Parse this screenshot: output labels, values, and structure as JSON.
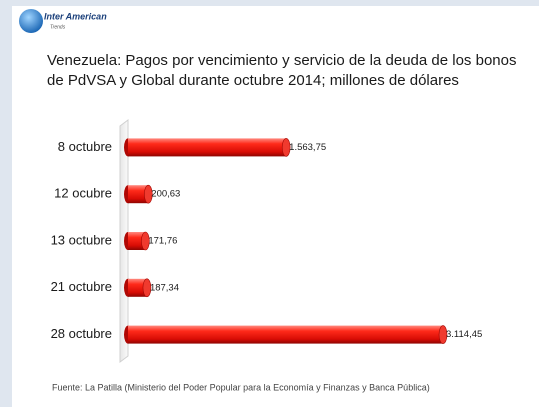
{
  "logo": {
    "name": "Inter American",
    "subtitle": "Trends"
  },
  "chart_data": {
    "type": "bar",
    "orientation": "horizontal",
    "title": "Venezuela: Pagos por vencimiento y servicio de la deuda de los bonos de PdVSA y Global durante octubre 2014; millones de dólares",
    "categories": [
      "8 octubre",
      "12 ocubre",
      "13 octubre",
      "21 octubre",
      "28 octubre"
    ],
    "values": [
      1563.75,
      200.63,
      171.76,
      187.34,
      3114.45
    ],
    "value_labels": [
      "1.563,75",
      "200,63",
      "171,76",
      "187,34",
      "3.114,45"
    ],
    "color": "#e8120c",
    "source": "Fuente: La Patilla (Ministerio del Poder Popular para la Economía y Finanzas y Banca Pública)"
  }
}
